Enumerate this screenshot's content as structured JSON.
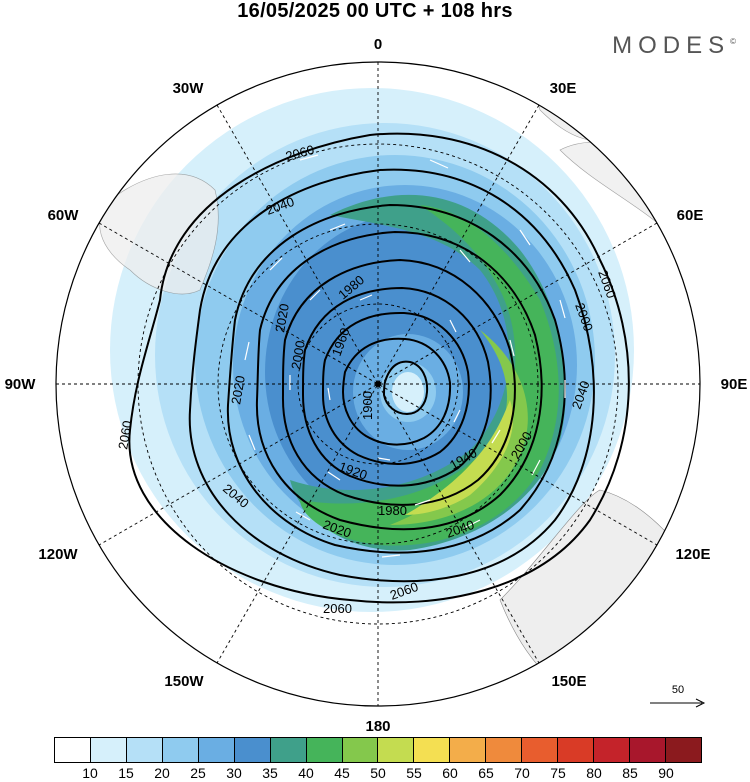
{
  "title": "16/05/2025  00 UTC  + 108 hrs",
  "brand": "MODES",
  "brand_mark": "©",
  "longitude_labels": {
    "lon_0": "0",
    "lon_30e": "30E",
    "lon_60e": "60E",
    "lon_90e": "90E",
    "lon_120e": "120E",
    "lon_150e": "150E",
    "lon_180": "180",
    "lon_150w": "150W",
    "lon_120w": "120W",
    "lon_90w": "90W",
    "lon_60w": "60W",
    "lon_30w": "30W"
  },
  "contour_labels": [
    "2060",
    "2040",
    "2020",
    "2000",
    "1980",
    "1960",
    "1940",
    "1920",
    "1900",
    "2060",
    "2040",
    "2020",
    "2000",
    "1980",
    "1960",
    "1940",
    "1920",
    "2060",
    "2040",
    "2020",
    "1980",
    "2000",
    "2040",
    "2060"
  ],
  "reference_vector": "50",
  "colorbar": {
    "colors": [
      "#ffffff",
      "#d6f0fb",
      "#b5e0f7",
      "#8fcbef",
      "#6aaee3",
      "#4a8fce",
      "#3fa08a",
      "#45b45a",
      "#84c84c",
      "#c4dc50",
      "#f4df52",
      "#f3ad4a",
      "#ef8a3c",
      "#e85d2e",
      "#d93b26",
      "#c4232a",
      "#a8172c",
      "#8b1a1e"
    ],
    "ticks": [
      "10",
      "15",
      "20",
      "25",
      "30",
      "35",
      "40",
      "45",
      "50",
      "55",
      "60",
      "65",
      "70",
      "75",
      "80",
      "85",
      "90"
    ]
  }
}
